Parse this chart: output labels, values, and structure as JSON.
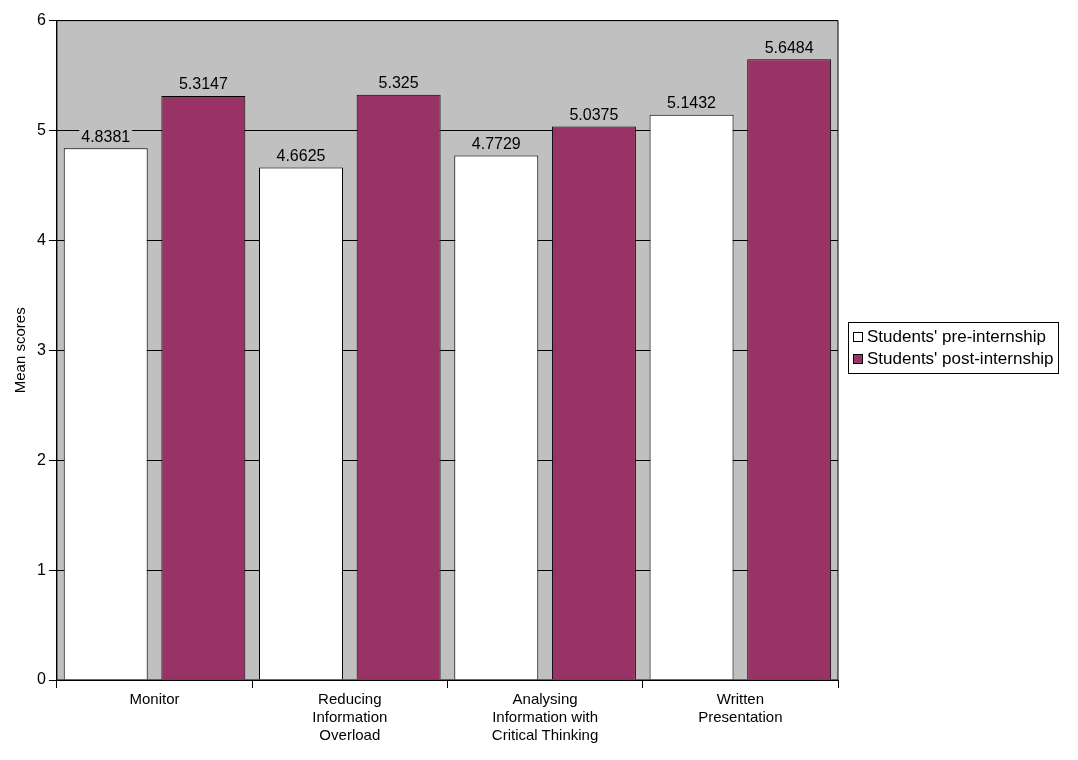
{
  "chart_data": {
    "type": "bar",
    "ylabel": "Mean scores",
    "categories": [
      "Monitor",
      "Reducing Information Overload",
      "Analysing Information with Critical Thinking",
      "Written Presentation"
    ],
    "series": [
      {
        "name": "Students' pre-internship",
        "color": "#ffffff",
        "values": [
          4.8381,
          4.6625,
          4.7729,
          5.1432
        ]
      },
      {
        "name": "Students' post-internship",
        "color": "#993366",
        "values": [
          5.3147,
          5.325,
          5.0375,
          5.6484
        ]
      }
    ],
    "ylim": [
      0,
      6
    ],
    "yticks": [
      0,
      1,
      2,
      3,
      4,
      5,
      6
    ],
    "grid": "y",
    "legend": "right",
    "data_labels": true
  }
}
